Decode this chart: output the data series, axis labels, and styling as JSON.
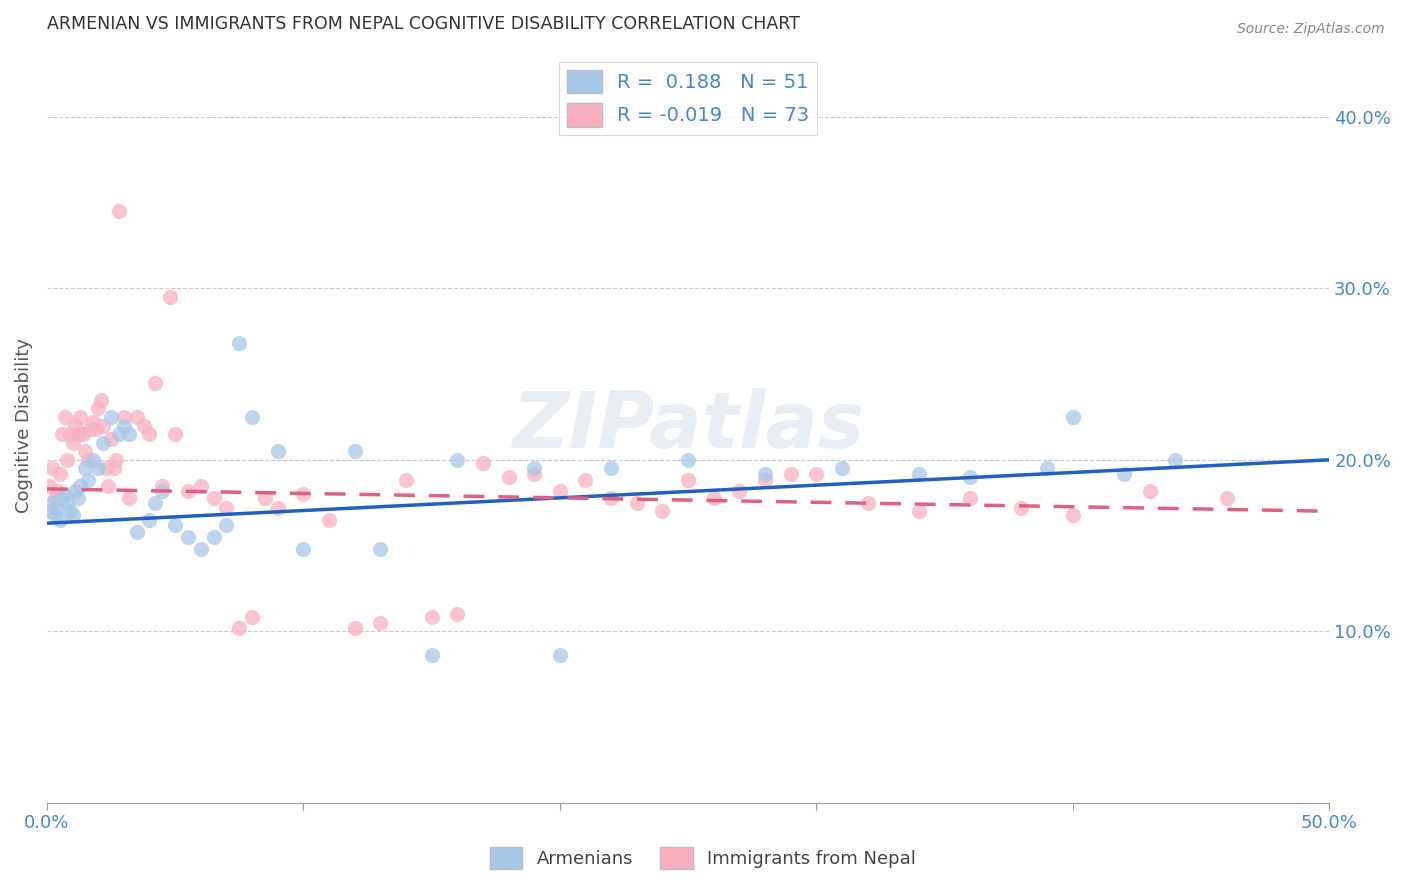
{
  "title": "ARMENIAN VS IMMIGRANTS FROM NEPAL COGNITIVE DISABILITY CORRELATION CHART",
  "source": "Source: ZipAtlas.com",
  "ylabel": "Cognitive Disability",
  "xlim": [
    0.0,
    0.5
  ],
  "ylim": [
    0.0,
    0.44
  ],
  "xticks": [
    0.0,
    0.1,
    0.2,
    0.3,
    0.4,
    0.5
  ],
  "yticks": [
    0.1,
    0.2,
    0.3,
    0.4
  ],
  "ytick_labels": [
    "10.0%",
    "20.0%",
    "30.0%",
    "40.0%"
  ],
  "xtick_labels": [
    "0.0%",
    "10.0%",
    "20.0%",
    "30.0%",
    "40.0%",
    "50.0%"
  ],
  "legend1_R": "0.188",
  "legend1_N": "51",
  "legend2_R": "-0.019",
  "legend2_N": "73",
  "blue_color": "#a8c8e8",
  "pink_color": "#f8b0c0",
  "line_blue": "#2060c0",
  "line_pink": "#e06080",
  "axis_color": "#4488cc",
  "watermark": "ZIPatlas",
  "armenians_x": [
    0.001,
    0.002,
    0.003,
    0.004,
    0.005,
    0.006,
    0.007,
    0.008,
    0.009,
    0.01,
    0.011,
    0.012,
    0.013,
    0.015,
    0.016,
    0.018,
    0.02,
    0.022,
    0.025,
    0.028,
    0.03,
    0.032,
    0.035,
    0.04,
    0.042,
    0.045,
    0.05,
    0.055,
    0.06,
    0.065,
    0.07,
    0.075,
    0.08,
    0.09,
    0.1,
    0.12,
    0.13,
    0.15,
    0.16,
    0.19,
    0.2,
    0.22,
    0.25,
    0.28,
    0.31,
    0.34,
    0.36,
    0.39,
    0.4,
    0.42,
    0.44
  ],
  "armenians_y": [
    0.17,
    0.175,
    0.168,
    0.172,
    0.165,
    0.178,
    0.18,
    0.175,
    0.17,
    0.168,
    0.182,
    0.178,
    0.185,
    0.195,
    0.188,
    0.2,
    0.195,
    0.21,
    0.225,
    0.215,
    0.22,
    0.215,
    0.158,
    0.165,
    0.175,
    0.182,
    0.162,
    0.155,
    0.148,
    0.155,
    0.162,
    0.268,
    0.225,
    0.205,
    0.148,
    0.205,
    0.148,
    0.086,
    0.2,
    0.195,
    0.086,
    0.195,
    0.2,
    0.192,
    0.195,
    0.192,
    0.19,
    0.195,
    0.225,
    0.192,
    0.2
  ],
  "nepal_x": [
    0.001,
    0.002,
    0.003,
    0.004,
    0.005,
    0.006,
    0.007,
    0.008,
    0.009,
    0.01,
    0.011,
    0.012,
    0.013,
    0.014,
    0.015,
    0.016,
    0.017,
    0.018,
    0.019,
    0.02,
    0.021,
    0.022,
    0.023,
    0.024,
    0.025,
    0.026,
    0.027,
    0.028,
    0.03,
    0.032,
    0.035,
    0.038,
    0.04,
    0.042,
    0.045,
    0.048,
    0.05,
    0.055,
    0.06,
    0.065,
    0.07,
    0.075,
    0.08,
    0.085,
    0.09,
    0.1,
    0.11,
    0.12,
    0.13,
    0.14,
    0.15,
    0.16,
    0.17,
    0.18,
    0.19,
    0.2,
    0.21,
    0.22,
    0.23,
    0.24,
    0.25,
    0.26,
    0.27,
    0.28,
    0.29,
    0.3,
    0.32,
    0.34,
    0.36,
    0.38,
    0.4,
    0.43,
    0.46
  ],
  "nepal_y": [
    0.185,
    0.195,
    0.178,
    0.182,
    0.192,
    0.215,
    0.225,
    0.2,
    0.215,
    0.21,
    0.22,
    0.215,
    0.225,
    0.215,
    0.205,
    0.2,
    0.218,
    0.222,
    0.218,
    0.23,
    0.235,
    0.22,
    0.195,
    0.185,
    0.212,
    0.195,
    0.2,
    0.345,
    0.225,
    0.178,
    0.225,
    0.22,
    0.215,
    0.245,
    0.185,
    0.295,
    0.215,
    0.182,
    0.185,
    0.178,
    0.172,
    0.102,
    0.108,
    0.178,
    0.172,
    0.18,
    0.165,
    0.102,
    0.105,
    0.188,
    0.108,
    0.11,
    0.198,
    0.19,
    0.192,
    0.182,
    0.188,
    0.178,
    0.175,
    0.17,
    0.188,
    0.178,
    0.182,
    0.188,
    0.192,
    0.192,
    0.175,
    0.17,
    0.178,
    0.172,
    0.168,
    0.182,
    0.178
  ],
  "arm_line_x0": 0.0,
  "arm_line_x1": 0.5,
  "arm_line_y0": 0.163,
  "arm_line_y1": 0.2,
  "nep_line_x0": 0.0,
  "nep_line_x1": 0.5,
  "nep_line_y0": 0.183,
  "nep_line_y1": 0.17
}
